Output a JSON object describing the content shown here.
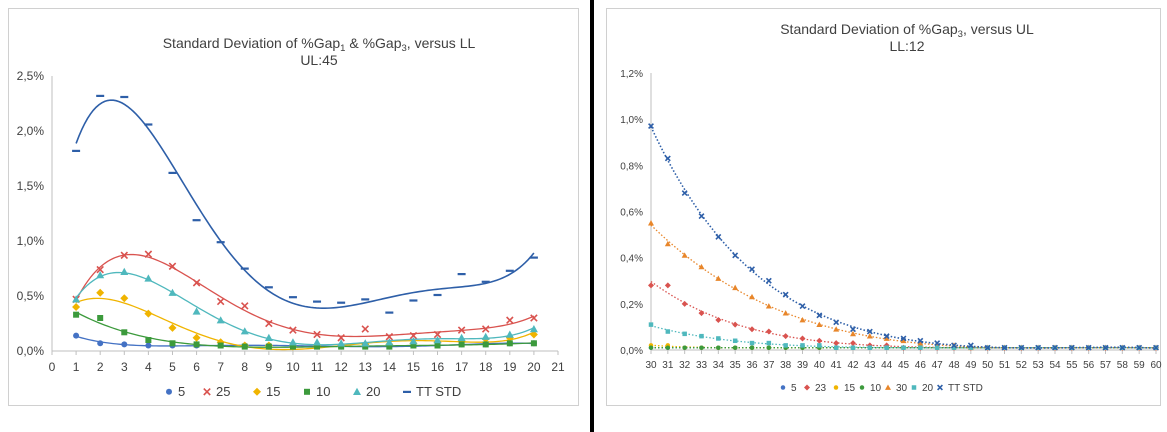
{
  "chart_data": [
    {
      "type": "scatter",
      "title": "Standard Deviation of %Gap1 & %Gap3, versus LL",
      "title_parts": [
        "Standard Deviation of %Gap",
        "1",
        " & %Gap",
        "3",
        ", versus LL"
      ],
      "subtitle": "UL:45",
      "xlim": [
        0,
        21
      ],
      "ylim": [
        0,
        0.025
      ],
      "x_ticks": [
        "0",
        "1",
        "2",
        "3",
        "4",
        "5",
        "6",
        "7",
        "8",
        "9",
        "10",
        "11",
        "12",
        "13",
        "14",
        "15",
        "16",
        "17",
        "18",
        "19",
        "20",
        "21"
      ],
      "y_ticks": [
        "0,0%",
        "0,5%",
        "1,0%",
        "1,5%",
        "2,0%",
        "2,5%"
      ],
      "y_tick_values": [
        0,
        0.005,
        0.01,
        0.015,
        0.02,
        0.025
      ],
      "x": [
        1,
        2,
        3,
        4,
        5,
        6,
        7,
        8,
        9,
        10,
        11,
        12,
        13,
        14,
        15,
        16,
        17,
        18,
        19,
        20
      ],
      "trendlines": true,
      "grid": false,
      "legend": "bottom",
      "series": [
        {
          "name": "5",
          "marker": "circle",
          "color": "#4472c4",
          "values": [
            0.0014,
            0.0007,
            0.0006,
            0.0005,
            0.0005,
            0.0005,
            0.0005,
            0.0005,
            0.0005,
            0.0005,
            0.0004,
            0.0004,
            0.0004,
            0.0004,
            0.0005,
            0.0005,
            0.0006,
            0.0006,
            0.0007,
            0.0007
          ]
        },
        {
          "name": "25",
          "marker": "x",
          "color": "#d9534f",
          "values": [
            0.0047,
            0.0074,
            0.0087,
            0.0088,
            0.0077,
            0.0062,
            0.0045,
            0.0041,
            0.0025,
            0.0019,
            0.0015,
            0.0012,
            0.002,
            0.0013,
            0.0014,
            0.0015,
            0.0019,
            0.002,
            0.0028,
            0.003
          ]
        },
        {
          "name": "15",
          "marker": "diamond",
          "color": "#f0b400",
          "values": [
            0.004,
            0.0053,
            0.0048,
            0.0034,
            0.0021,
            0.0012,
            0.0008,
            0.0005,
            0.0005,
            0.0004,
            0.0005,
            0.0005,
            0.0006,
            0.0006,
            0.0007,
            0.0008,
            0.0009,
            0.0011,
            0.0012,
            0.0015
          ]
        },
        {
          "name": "10",
          "marker": "square",
          "color": "#3c9a3c",
          "values": [
            0.0033,
            0.003,
            0.0017,
            0.001,
            0.0007,
            0.0006,
            0.0005,
            0.0004,
            0.0004,
            0.0004,
            0.0004,
            0.0004,
            0.0004,
            0.0004,
            0.0005,
            0.0005,
            0.0006,
            0.0006,
            0.0007,
            0.0007
          ]
        },
        {
          "name": "20",
          "marker": "triangle",
          "color": "#4fb8bd",
          "values": [
            0.0047,
            0.0069,
            0.0072,
            0.0066,
            0.0053,
            0.0036,
            0.0028,
            0.0018,
            0.0012,
            0.0008,
            0.0008,
            0.0007,
            0.0007,
            0.0008,
            0.0009,
            0.001,
            0.0012,
            0.0013,
            0.0015,
            0.002
          ]
        },
        {
          "name": "TT STD",
          "marker": "dash",
          "color": "#2e5fa8",
          "values": [
            0.0182,
            0.0232,
            0.0231,
            0.0206,
            0.0162,
            0.0119,
            0.0099,
            0.0075,
            0.0058,
            0.0049,
            0.0045,
            0.0044,
            0.0047,
            0.0035,
            0.0046,
            0.0051,
            0.007,
            0.0063,
            0.0073,
            0.0085
          ]
        }
      ]
    },
    {
      "type": "scatter",
      "title": "Standard Deviation of %Gap3, versus UL",
      "title_parts": [
        "Standard Deviation of %Gap",
        "3",
        ", versus UL"
      ],
      "subtitle": "LL:12",
      "xlim": [
        30,
        60
      ],
      "ylim": [
        0,
        0.012
      ],
      "x_ticks": [
        "30",
        "31",
        "32",
        "33",
        "34",
        "35",
        "36",
        "37",
        "38",
        "39",
        "40",
        "41",
        "42",
        "43",
        "44",
        "45",
        "46",
        "47",
        "48",
        "49",
        "50",
        "51",
        "52",
        "53",
        "54",
        "55",
        "56",
        "57",
        "58",
        "59",
        "60"
      ],
      "y_ticks": [
        "0,0%",
        "0,2%",
        "0,4%",
        "0,6%",
        "0,8%",
        "1,0%",
        "1,2%"
      ],
      "y_tick_values": [
        0,
        0.002,
        0.004,
        0.006,
        0.008,
        0.01,
        0.012
      ],
      "x": [
        30,
        31,
        32,
        33,
        34,
        35,
        36,
        37,
        38,
        39,
        40,
        41,
        42,
        43,
        44,
        45,
        46,
        47,
        48,
        49,
        50,
        51,
        52,
        53,
        54,
        55,
        56,
        57,
        58,
        59,
        60
      ],
      "trendlines": true,
      "trendline_style": "dotted",
      "grid": false,
      "legend": "bottom",
      "series": [
        {
          "name": "5",
          "marker": "circle",
          "color": "#4472c4",
          "values": [
            0.0001,
            0.0001,
            0.0001,
            0.0001,
            0.0001,
            0.0001,
            0.0001,
            0.0001,
            0.0001,
            0.0001,
            0.0001,
            0.0001,
            0.0001,
            0.0001,
            0.0001,
            0.0001,
            0.0001,
            0.0001,
            0.0001,
            0.0001,
            0.0001,
            0.0001,
            0.0001,
            0.0001,
            0.0001,
            0.0001,
            0.0001,
            0.0001,
            0.0001,
            0.0001,
            0.0001
          ]
        },
        {
          "name": "23",
          "marker": "diamond",
          "color": "#d9534f",
          "values": [
            0.0028,
            0.0028,
            0.002,
            0.0016,
            0.0013,
            0.0011,
            0.0009,
            0.0008,
            0.0006,
            0.0005,
            0.0004,
            0.0003,
            0.0003,
            0.0002,
            0.0002,
            0.0001,
            0.0001,
            0.0001,
            0.0001,
            0.0001,
            0.0001,
            0.0001,
            0.0001,
            0.0001,
            0.0001,
            0.0001,
            0.0001,
            0.0001,
            0.0001,
            0.0001,
            0.0001
          ]
        },
        {
          "name": "15",
          "marker": "circle",
          "color": "#f0b400",
          "values": [
            0.0002,
            0.0002,
            0.0001,
            0.0001,
            0.0001,
            0.0001,
            0.0001,
            0.0001,
            0.0001,
            0.0001,
            0.0001,
            0.0001,
            0.0001,
            0.0001,
            0.0001,
            0.0001,
            0.0001,
            0.0001,
            0.0001,
            0.0001,
            0.0001,
            0.0001,
            0.0001,
            0.0001,
            0.0001,
            0.0001,
            0.0001,
            0.0001,
            0.0001,
            0.0001,
            0.0001
          ]
        },
        {
          "name": "10",
          "marker": "circle",
          "color": "#3c9a3c",
          "values": [
            0.0001,
            0.0001,
            0.0001,
            0.0001,
            0.0001,
            0.0001,
            0.0001,
            0.0001,
            0.0001,
            0.0001,
            0.0001,
            0.0001,
            0.0001,
            0.0001,
            0.0001,
            0.0001,
            0.0001,
            0.0001,
            0.0001,
            0.0001,
            0.0001,
            0.0001,
            0.0001,
            0.0001,
            0.0001,
            0.0001,
            0.0001,
            0.0001,
            0.0001,
            0.0001,
            0.0001
          ]
        },
        {
          "name": "30",
          "marker": "triangle",
          "color": "#e8862a",
          "values": [
            0.0055,
            0.0046,
            0.0041,
            0.0036,
            0.0031,
            0.0027,
            0.0023,
            0.0019,
            0.0016,
            0.0013,
            0.0011,
            0.0009,
            0.0007,
            0.0006,
            0.0005,
            0.0004,
            0.0003,
            0.0002,
            0.0002,
            0.0001,
            0.0001,
            0.0001,
            0.0001,
            0.0001,
            0.0001,
            0.0001,
            0.0001,
            0.0001,
            0.0001,
            0.0001,
            0.0001
          ]
        },
        {
          "name": "20",
          "marker": "square",
          "color": "#4fb8bd",
          "values": [
            0.0011,
            0.0008,
            0.0007,
            0.0006,
            0.0005,
            0.0004,
            0.0003,
            0.0003,
            0.0002,
            0.0002,
            0.0002,
            0.0001,
            0.0001,
            0.0001,
            0.0001,
            0.0001,
            0.0001,
            0.0001,
            0.0001,
            0.0001,
            0.0001,
            0.0001,
            0.0001,
            0.0001,
            0.0001,
            0.0001,
            0.0001,
            0.0001,
            0.0001,
            0.0001,
            0.0001
          ]
        },
        {
          "name": "TT STD",
          "marker": "x",
          "color": "#2e5fa8",
          "values": [
            0.0097,
            0.0083,
            0.0068,
            0.0058,
            0.0049,
            0.0041,
            0.0035,
            0.003,
            0.0024,
            0.0019,
            0.0015,
            0.0012,
            0.0009,
            0.0008,
            0.0006,
            0.0005,
            0.0004,
            0.0003,
            0.0002,
            0.0002,
            0.0001,
            0.0001,
            0.0001,
            0.0001,
            0.0001,
            0.0001,
            0.0001,
            0.0001,
            0.0001,
            0.0001,
            0.0001
          ]
        }
      ]
    }
  ]
}
